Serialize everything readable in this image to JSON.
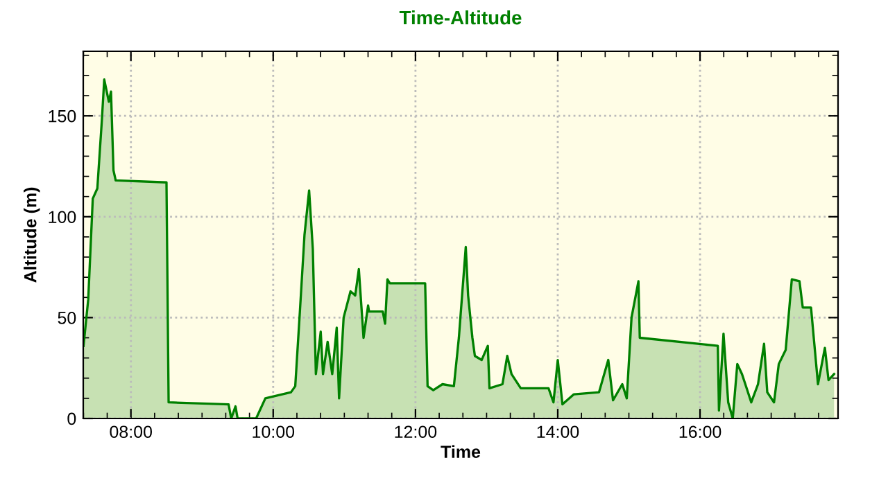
{
  "chart_data": {
    "type": "area",
    "title": "Time-Altitude",
    "xlabel": "Time",
    "ylabel": "Altitude (m)",
    "xlim": [
      7.33,
      17.94
    ],
    "ylim": [
      0,
      182
    ],
    "xticks": [
      {
        "value": 8,
        "label": "08:00"
      },
      {
        "value": 10,
        "label": "10:00"
      },
      {
        "value": 12,
        "label": "12:00"
      },
      {
        "value": 14,
        "label": "14:00"
      },
      {
        "value": 16,
        "label": "16:00"
      }
    ],
    "yticks": [
      0,
      50,
      100,
      150
    ],
    "grid": true,
    "series": [
      {
        "color": "#008000",
        "x": [
          7.334,
          7.4,
          7.464,
          7.528,
          7.592,
          7.625,
          7.69,
          7.72,
          7.755,
          7.786,
          8.5,
          8.53,
          9.373,
          9.41,
          9.47,
          9.5,
          9.76,
          9.89,
          10.25,
          10.31,
          10.377,
          10.44,
          10.505,
          10.557,
          10.6,
          10.668,
          10.7,
          10.765,
          10.83,
          10.893,
          10.926,
          10.99,
          11.087,
          11.153,
          11.204,
          11.27,
          11.334,
          11.347,
          11.54,
          11.573,
          11.606,
          11.64,
          12.136,
          12.17,
          12.25,
          12.38,
          12.54,
          12.61,
          12.707,
          12.74,
          12.8,
          12.835,
          12.93,
          13.017,
          13.04,
          13.223,
          13.29,
          13.35,
          13.48,
          13.87,
          13.94,
          14.0,
          14.066,
          14.227,
          14.58,
          14.71,
          14.777,
          14.907,
          14.97,
          15.037,
          15.134,
          15.153,
          16.25,
          16.266,
          16.33,
          16.396,
          16.46,
          16.524,
          16.59,
          16.655,
          16.72,
          16.815,
          16.9,
          16.945,
          17.04,
          17.107,
          17.204,
          17.29,
          17.398,
          17.444,
          17.56,
          17.658,
          17.755,
          17.806,
          17.884
        ],
        "values": [
          36,
          59,
          109,
          114,
          148,
          168,
          157,
          162,
          123,
          118,
          117,
          8,
          7,
          0,
          6,
          0,
          0,
          10,
          13,
          16,
          54,
          91,
          113,
          84,
          22,
          43,
          22,
          38,
          22,
          45,
          10,
          50,
          63,
          61,
          74,
          40,
          56,
          53,
          53,
          47,
          69,
          67,
          67,
          16,
          14,
          17,
          16,
          40,
          85,
          61,
          40,
          31,
          29,
          36,
          15,
          17,
          31,
          22,
          15,
          15,
          8,
          29,
          7,
          12,
          13,
          29,
          9,
          17,
          10,
          50,
          68,
          40,
          36,
          4,
          42,
          8,
          0,
          27,
          22,
          15,
          8,
          17,
          37,
          13,
          8,
          27,
          34,
          69,
          68,
          55,
          55,
          17,
          35,
          19,
          22
        ]
      }
    ]
  }
}
